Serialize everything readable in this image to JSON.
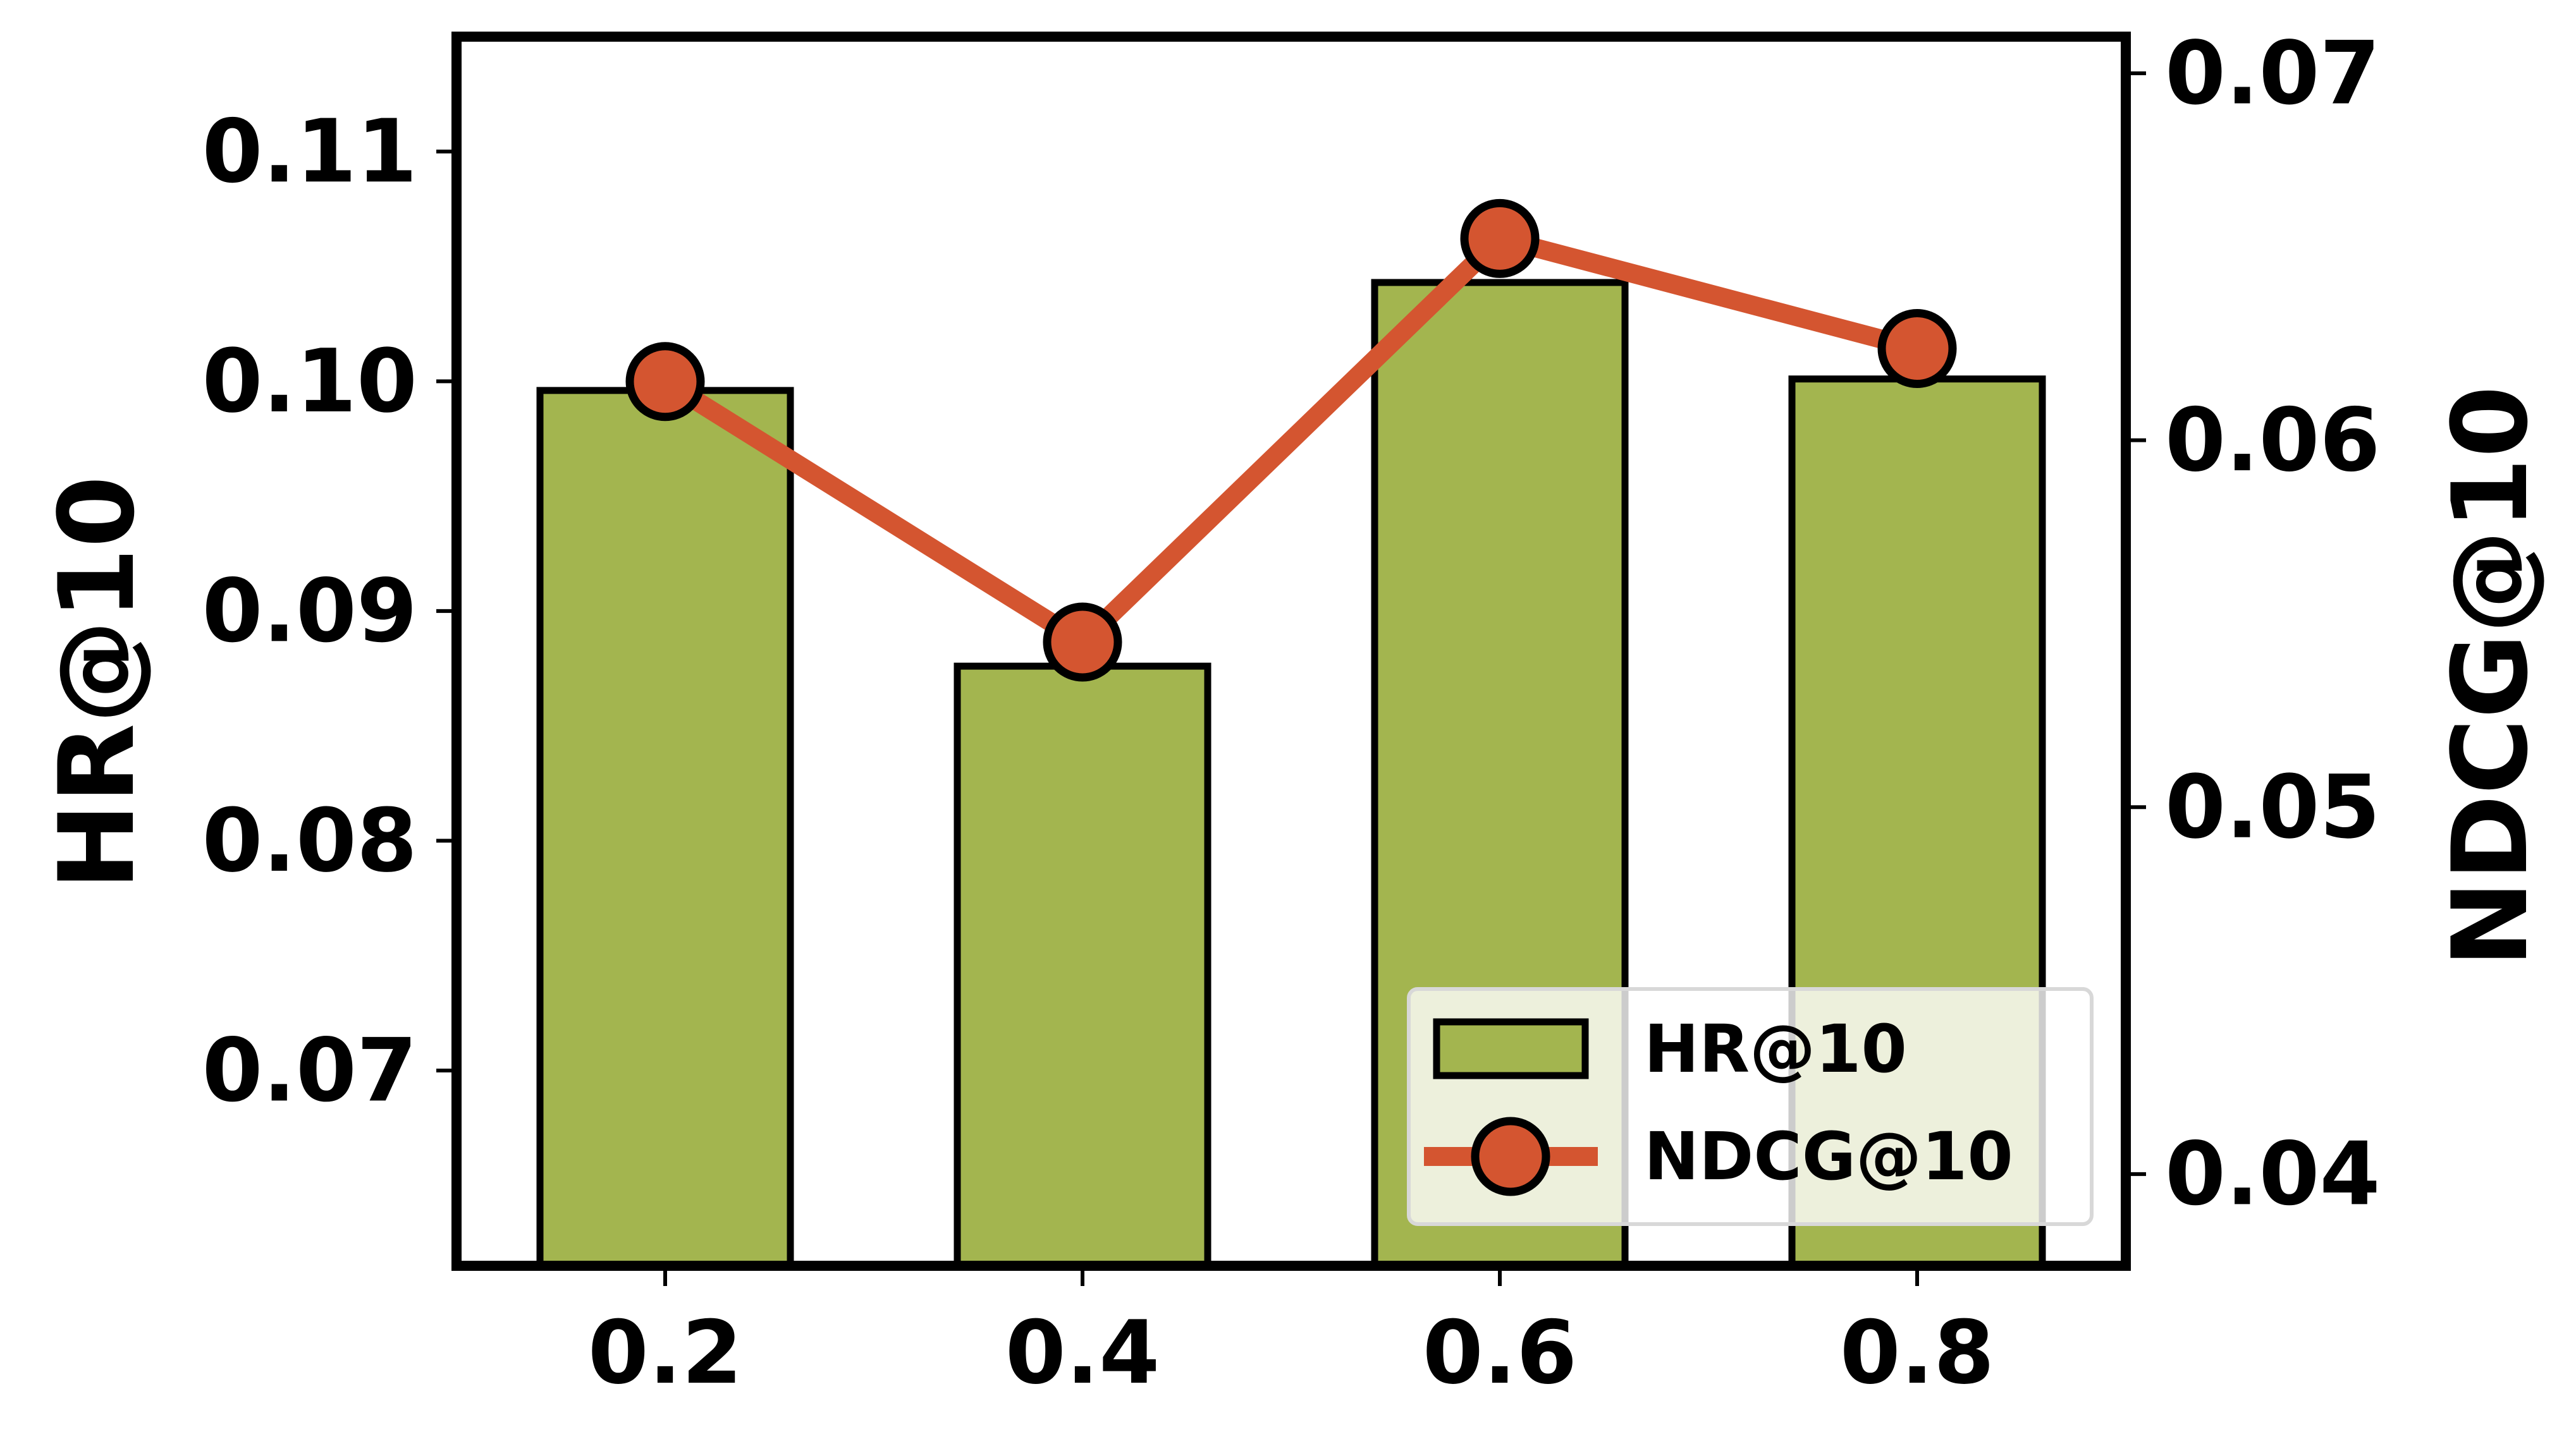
{
  "chart_data": {
    "type": "bar",
    "categories": [
      "0.2",
      "0.4",
      "0.6",
      "0.8"
    ],
    "series": [
      {
        "name": "HR@10",
        "kind": "bar",
        "axis": "left",
        "values": [
          0.0996,
          0.0876,
          0.1043,
          0.1001
        ],
        "color": "#a3b54f",
        "edge_color": "#000000"
      },
      {
        "name": "NDCG@10",
        "kind": "line",
        "axis": "right",
        "values": [
          0.0616,
          0.0545,
          0.0655,
          0.0625
        ],
        "color": "#d45530",
        "edge_color": "#000000"
      }
    ],
    "xlabel": "",
    "ylabel": "HR@10",
    "y2label": "NDCG@10",
    "ylim": [
      0.0615,
      0.115
    ],
    "y2lim": [
      0.0375,
      0.071
    ],
    "yticks": [
      0.07,
      0.08,
      0.09,
      0.1,
      0.11
    ],
    "ytick_labels": [
      "0.07",
      "0.08",
      "0.09",
      "0.10",
      "0.11"
    ],
    "y2ticks": [
      0.04,
      0.05,
      0.06,
      0.07
    ],
    "y2tick_labels": [
      "0.04",
      "0.05",
      "0.06",
      "0.07"
    ],
    "legend": {
      "position": "bottom-right",
      "entries": [
        "HR@10",
        "NDCG@10"
      ]
    },
    "grid": false
  }
}
